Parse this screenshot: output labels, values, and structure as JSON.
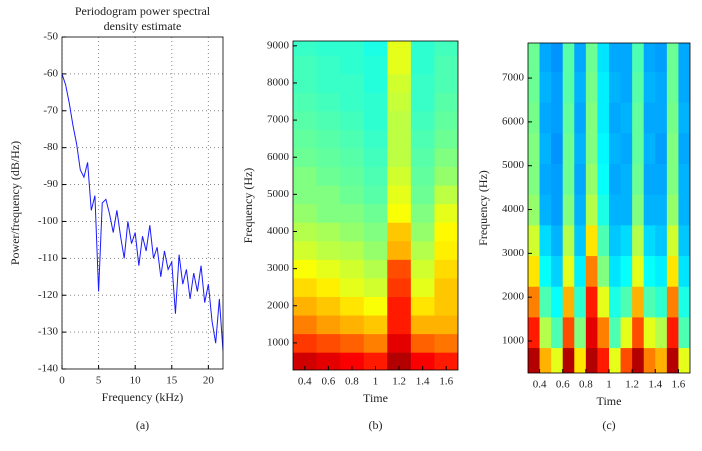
{
  "chart_data": [
    {
      "type": "line",
      "title": [
        "Periodogram power spectral",
        "density estimate"
      ],
      "xlabel": "Frequency (kHz)",
      "ylabel": "Power/frequency (dB/Hz)",
      "caption": "(a)",
      "xlim": [
        0,
        22
      ],
      "xticks": [
        0,
        5,
        10,
        15,
        20
      ],
      "ylim": [
        -140,
        -50
      ],
      "yticks": [
        -140,
        -130,
        -120,
        -110,
        -100,
        -90,
        -80,
        -70,
        -60,
        -50
      ],
      "grid": true,
      "color": "#1a1aff",
      "x": [
        0,
        0.5,
        1,
        1.5,
        2,
        2.5,
        3,
        3.5,
        4,
        4.5,
        5,
        5.5,
        6,
        6.5,
        7,
        7.5,
        8,
        8.5,
        9,
        9.5,
        10,
        10.5,
        11,
        11.5,
        12,
        12.5,
        13,
        13.5,
        14,
        14.5,
        15,
        15.5,
        16,
        16.5,
        17,
        17.5,
        18,
        18.5,
        19,
        19.5,
        20,
        20.5,
        21,
        21.5,
        22
      ],
      "values": [
        -60,
        -63,
        -68,
        -74,
        -79,
        -86,
        -88,
        -84,
        -97,
        -93,
        -119,
        -95,
        -94,
        -98,
        -103,
        -97,
        -104,
        -110,
        -100,
        -106,
        -103,
        -112,
        -104,
        -108,
        -101,
        -110,
        -107,
        -115,
        -108,
        -113,
        -111,
        -125,
        -109,
        -117,
        -113,
        -121,
        -114,
        -119,
        -112,
        -122,
        -117,
        -127,
        -133,
        -121,
        -135
      ]
    },
    {
      "type": "heatmap",
      "xlabel": "Time",
      "ylabel": "Frequency (Hz)",
      "caption": "(b)",
      "colormap": "jet",
      "xlim": [
        0.3,
        1.7
      ],
      "xticks": [
        0.4,
        0.6,
        0.8,
        1,
        1.2,
        1.4,
        1.6
      ],
      "ylim": [
        270,
        9130
      ],
      "yticks": [
        1000,
        2000,
        3000,
        4000,
        5000,
        6000,
        7000,
        8000,
        9000
      ],
      "x": [
        0.4,
        0.6,
        0.8,
        1,
        1.2,
        1.4,
        1.6
      ],
      "y": [
        500,
        1000,
        1500,
        2000,
        2500,
        3000,
        3500,
        4000,
        4500,
        5000,
        5500,
        6000,
        6500,
        7000,
        7500,
        8000,
        8500,
        9000
      ],
      "z": [
        [
          0.92,
          0.9,
          0.88,
          0.85,
          0.95,
          0.88,
          0.85
        ],
        [
          0.82,
          0.8,
          0.78,
          0.75,
          0.9,
          0.78,
          0.76
        ],
        [
          0.75,
          0.72,
          0.7,
          0.68,
          0.85,
          0.7,
          0.7
        ],
        [
          0.7,
          0.68,
          0.65,
          0.62,
          0.85,
          0.65,
          0.68
        ],
        [
          0.66,
          0.64,
          0.6,
          0.58,
          0.82,
          0.6,
          0.68
        ],
        [
          0.62,
          0.6,
          0.58,
          0.55,
          0.8,
          0.58,
          0.66
        ],
        [
          0.58,
          0.56,
          0.55,
          0.52,
          0.7,
          0.55,
          0.64
        ],
        [
          0.55,
          0.54,
          0.52,
          0.5,
          0.68,
          0.52,
          0.63
        ],
        [
          0.52,
          0.5,
          0.5,
          0.48,
          0.62,
          0.5,
          0.6
        ],
        [
          0.5,
          0.5,
          0.48,
          0.46,
          0.6,
          0.48,
          0.56
        ],
        [
          0.5,
          0.48,
          0.47,
          0.45,
          0.58,
          0.47,
          0.52
        ],
        [
          0.48,
          0.47,
          0.46,
          0.44,
          0.56,
          0.46,
          0.5
        ],
        [
          0.47,
          0.46,
          0.45,
          0.43,
          0.56,
          0.45,
          0.48
        ],
        [
          0.46,
          0.45,
          0.44,
          0.42,
          0.56,
          0.44,
          0.47
        ],
        [
          0.45,
          0.44,
          0.43,
          0.42,
          0.57,
          0.43,
          0.46
        ],
        [
          0.44,
          0.43,
          0.43,
          0.41,
          0.58,
          0.43,
          0.45
        ],
        [
          0.44,
          0.43,
          0.42,
          0.41,
          0.6,
          0.42,
          0.45
        ],
        [
          0.43,
          0.42,
          0.42,
          0.4,
          0.6,
          0.42,
          0.44
        ]
      ]
    },
    {
      "type": "heatmap",
      "xlabel": "Time",
      "ylabel": "Frequency (Hz)",
      "caption": "(c)",
      "colormap": "jet",
      "xlim": [
        0.3,
        1.7
      ],
      "xticks": [
        0.4,
        0.6,
        0.8,
        1,
        1.2,
        1.4,
        1.6
      ],
      "ylim": [
        270,
        7800
      ],
      "yticks": [
        1000,
        2000,
        3000,
        4000,
        5000,
        6000,
        7000
      ],
      "x": [
        0.35,
        0.45,
        0.55,
        0.65,
        0.75,
        0.85,
        0.95,
        1.05,
        1.15,
        1.25,
        1.35,
        1.45,
        1.55,
        1.65
      ],
      "y": [
        500,
        1200,
        1900,
        2600,
        3300,
        4000,
        4700,
        5400,
        6100,
        6800,
        7500
      ],
      "z": [
        [
          0.95,
          0.7,
          0.6,
          0.95,
          0.65,
          0.95,
          0.85,
          0.6,
          0.8,
          0.95,
          0.75,
          0.7,
          0.95,
          0.6
        ],
        [
          0.85,
          0.55,
          0.45,
          0.8,
          0.5,
          0.9,
          0.75,
          0.45,
          0.6,
          0.8,
          0.6,
          0.55,
          0.85,
          0.45
        ],
        [
          0.75,
          0.45,
          0.38,
          0.7,
          0.42,
          0.85,
          0.6,
          0.4,
          0.45,
          0.7,
          0.45,
          0.42,
          0.75,
          0.4
        ],
        [
          0.65,
          0.38,
          0.33,
          0.6,
          0.36,
          0.75,
          0.5,
          0.35,
          0.38,
          0.6,
          0.38,
          0.36,
          0.65,
          0.35
        ],
        [
          0.58,
          0.34,
          0.3,
          0.55,
          0.32,
          0.65,
          0.45,
          0.32,
          0.34,
          0.55,
          0.34,
          0.32,
          0.58,
          0.32
        ],
        [
          0.52,
          0.3,
          0.28,
          0.5,
          0.3,
          0.55,
          0.4,
          0.3,
          0.3,
          0.5,
          0.3,
          0.3,
          0.52,
          0.3
        ],
        [
          0.5,
          0.29,
          0.28,
          0.48,
          0.29,
          0.52,
          0.38,
          0.29,
          0.3,
          0.48,
          0.29,
          0.29,
          0.5,
          0.3
        ],
        [
          0.5,
          0.3,
          0.27,
          0.48,
          0.3,
          0.5,
          0.37,
          0.3,
          0.29,
          0.47,
          0.3,
          0.28,
          0.5,
          0.29
        ],
        [
          0.49,
          0.29,
          0.28,
          0.47,
          0.29,
          0.5,
          0.36,
          0.29,
          0.3,
          0.47,
          0.29,
          0.29,
          0.49,
          0.3
        ],
        [
          0.48,
          0.3,
          0.28,
          0.46,
          0.3,
          0.49,
          0.36,
          0.3,
          0.29,
          0.46,
          0.3,
          0.29,
          0.48,
          0.29
        ],
        [
          0.48,
          0.29,
          0.27,
          0.46,
          0.29,
          0.48,
          0.35,
          0.29,
          0.29,
          0.45,
          0.29,
          0.28,
          0.48,
          0.29
        ]
      ]
    }
  ]
}
